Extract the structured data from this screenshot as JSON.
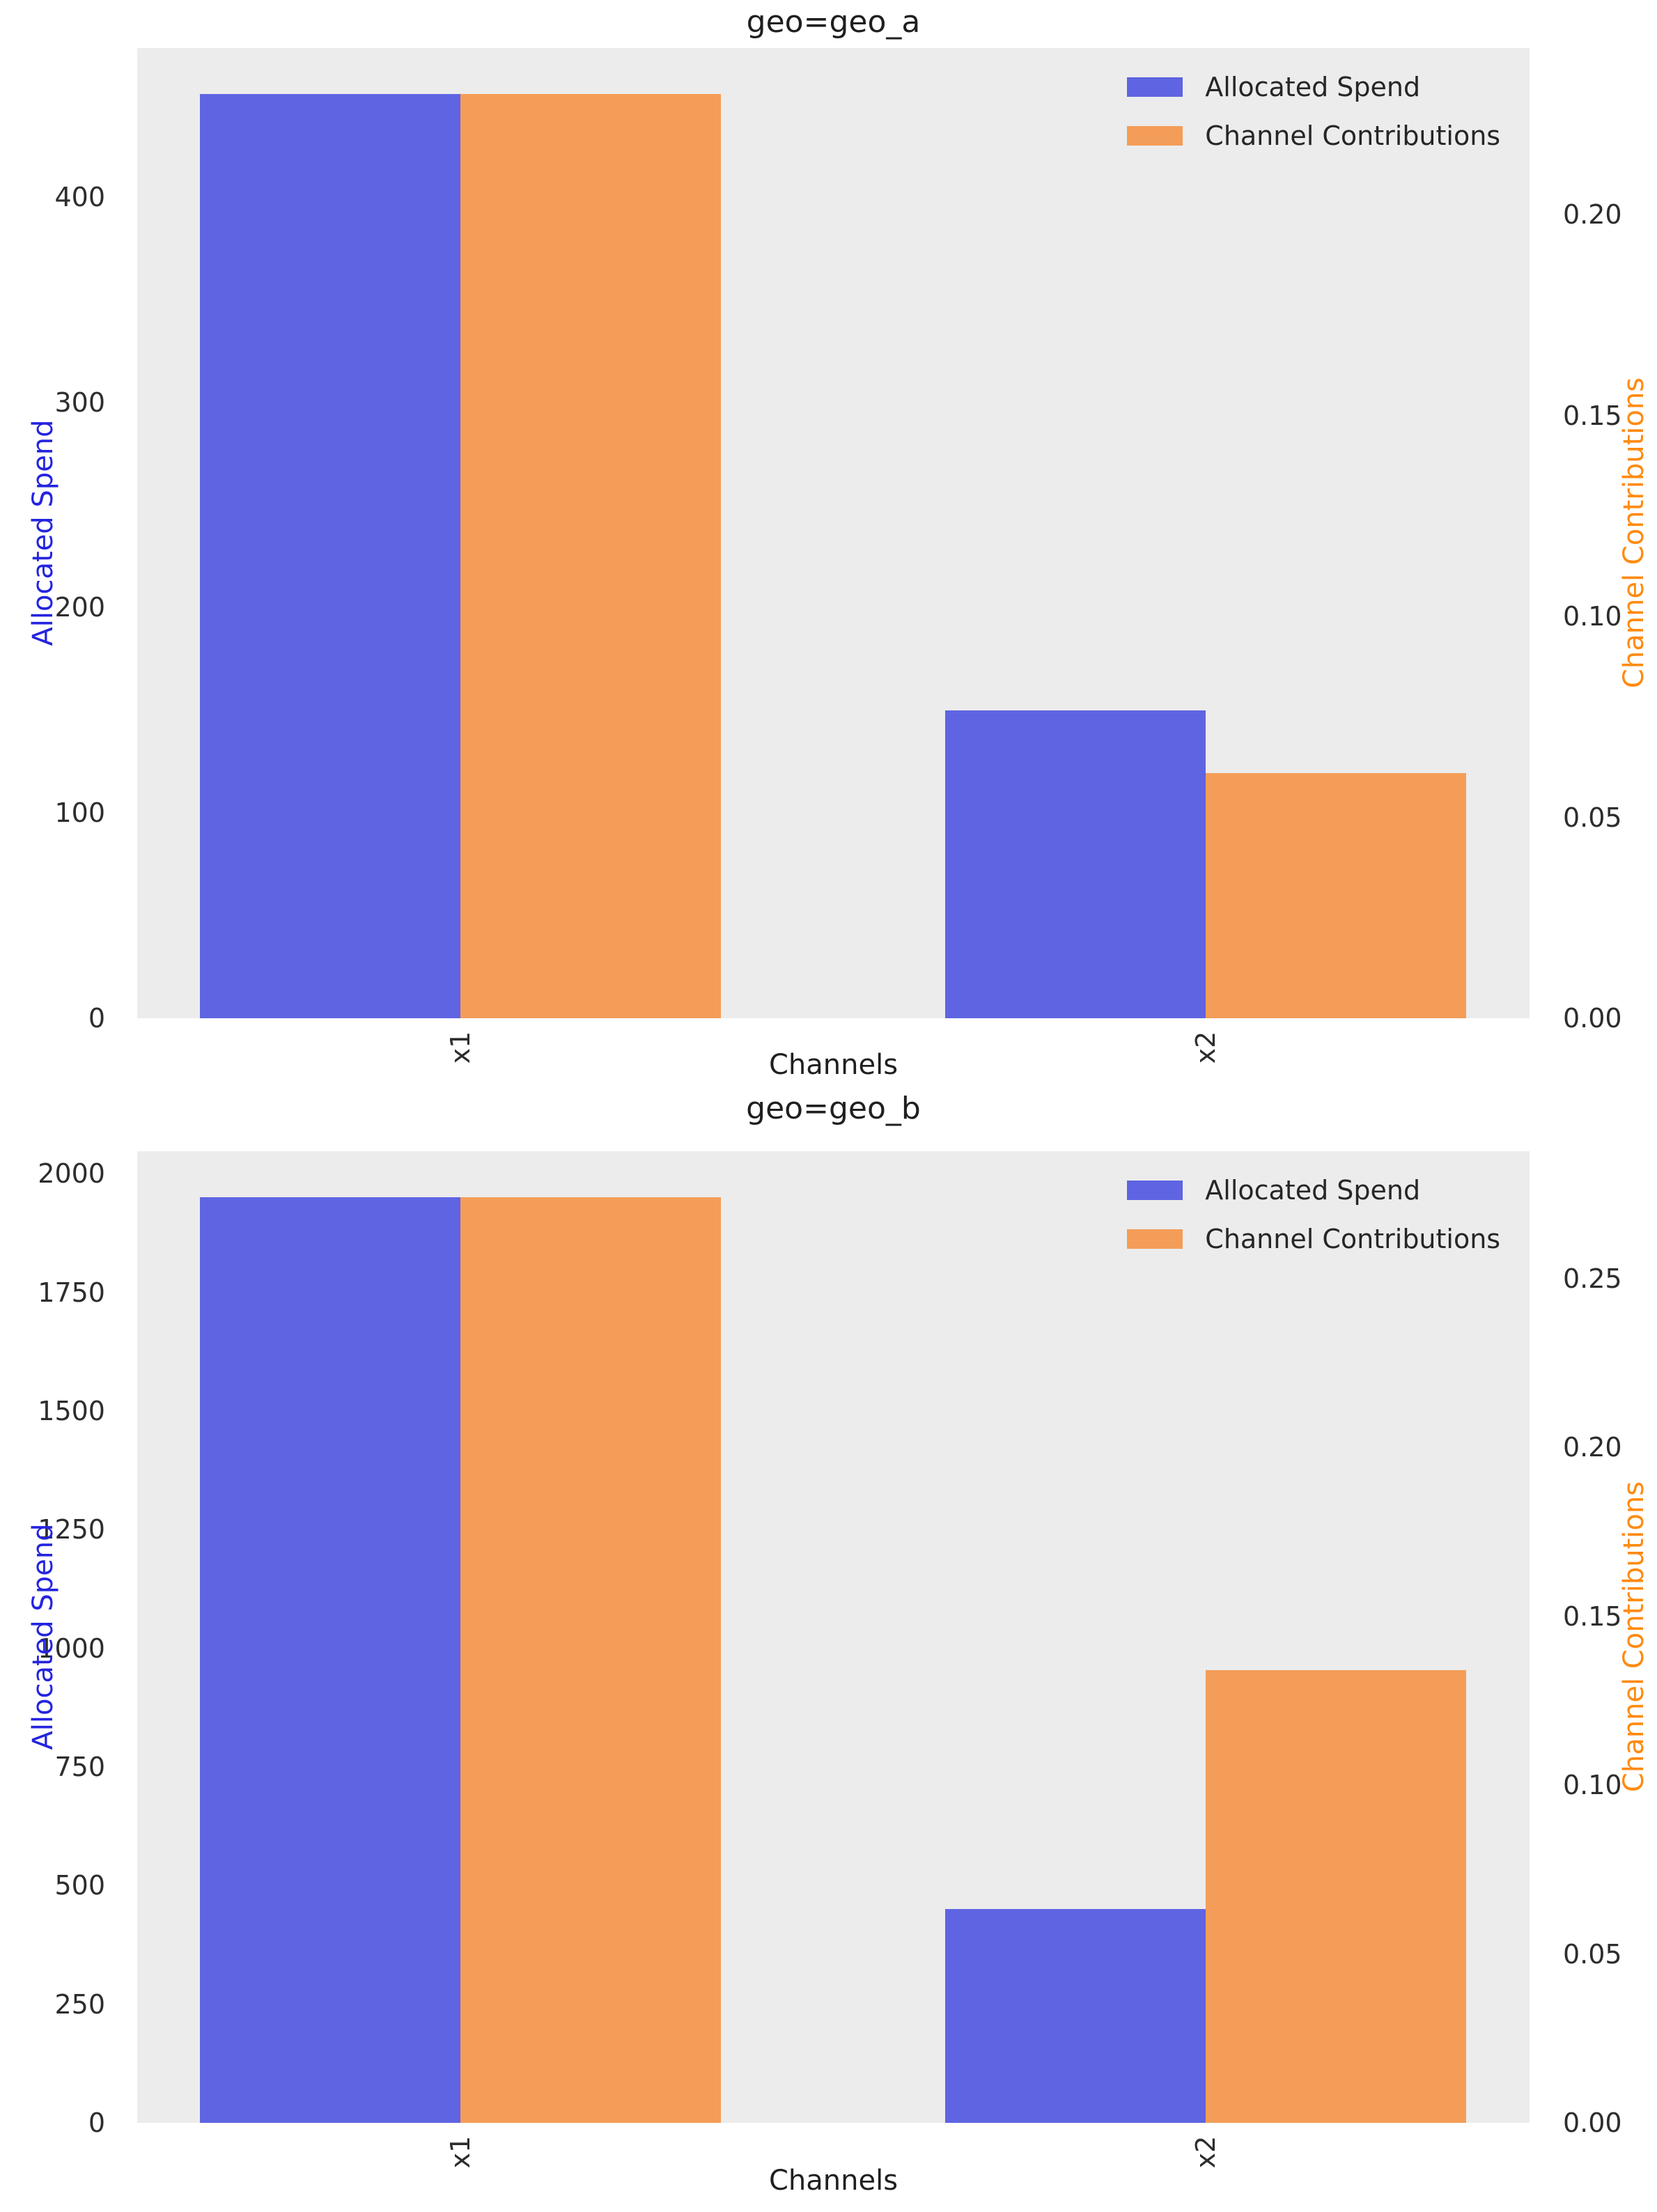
{
  "figure": {
    "background": "#ffffff"
  },
  "colors": {
    "plot_bg": "#ececec",
    "spend": "#5f64e2",
    "contrib": "#f49d58",
    "ylabel_left": "#2424df",
    "ylabel_right": "#ff8a0e",
    "tick_text": "#2d2d2d"
  },
  "chart_data": [
    {
      "type": "bar",
      "title": "geo=geo_a",
      "xlabel": "Channels",
      "ylabel_left": "Allocated Spend",
      "ylabel_right": "Channel Contributions",
      "categories": [
        "x1",
        "x2"
      ],
      "series": [
        {
          "name": "Allocated Spend",
          "axis": "left",
          "color": "#5f64e2",
          "values": [
            450,
            150
          ]
        },
        {
          "name": "Channel Contributions",
          "axis": "right",
          "color": "#f49d58",
          "values": [
            0.23,
            0.061
          ]
        }
      ],
      "ylim_left": [
        0,
        472.5
      ],
      "ylim_right": [
        0,
        0.2415
      ],
      "yticks_left": {
        "values": [
          0,
          100,
          200,
          300,
          400
        ],
        "labels": [
          "0",
          "100",
          "200",
          "300",
          "400"
        ]
      },
      "yticks_right": {
        "values": [
          0,
          0.05,
          0.1,
          0.15,
          0.2
        ],
        "labels": [
          "0.00",
          "0.05",
          "0.10",
          "0.15",
          "0.20"
        ]
      },
      "legend_position": "upper right",
      "grid": false
    },
    {
      "type": "bar",
      "title": "geo=geo_b",
      "xlabel": "Channels",
      "ylabel_left": "Allocated Spend",
      "ylabel_right": "Channel Contributions",
      "categories": [
        "x1",
        "x2"
      ],
      "series": [
        {
          "name": "Allocated Spend",
          "axis": "left",
          "color": "#5f64e2",
          "values": [
            1950,
            450
          ]
        },
        {
          "name": "Channel Contributions",
          "axis": "right",
          "color": "#f49d58",
          "values": [
            0.274,
            0.134
          ]
        }
      ],
      "ylim_left": [
        0,
        2047.5
      ],
      "ylim_right": [
        0,
        0.2877
      ],
      "yticks_left": {
        "values": [
          0,
          250,
          500,
          750,
          1000,
          1250,
          1500,
          1750,
          2000
        ],
        "labels": [
          "0",
          "250",
          "500",
          "750",
          "1000",
          "1250",
          "1500",
          "1750",
          "2000"
        ]
      },
      "yticks_right": {
        "values": [
          0,
          0.05,
          0.1,
          0.15,
          0.2,
          0.25
        ],
        "labels": [
          "0.00",
          "0.05",
          "0.10",
          "0.15",
          "0.20",
          "0.25"
        ]
      },
      "legend_position": "upper right",
      "grid": false
    }
  ]
}
